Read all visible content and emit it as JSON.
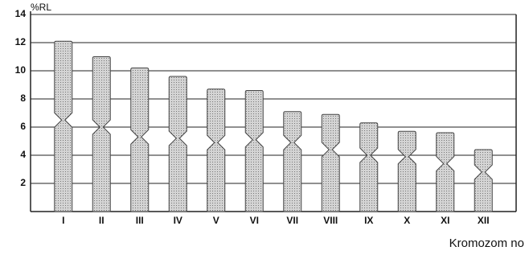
{
  "chart_data": {
    "type": "idiogram",
    "y_label": "%RL",
    "x_label": "Kromozom no",
    "categories": [
      "I",
      "II",
      "III",
      "IV",
      "V",
      "VI",
      "VII",
      "VIII",
      "IX",
      "X",
      "XI",
      "XII"
    ],
    "values": [
      12.1,
      11.0,
      10.2,
      9.6,
      8.7,
      8.6,
      7.1,
      6.9,
      6.3,
      5.7,
      5.6,
      4.4
    ],
    "centromeres": [
      6.5,
      6.0,
      5.3,
      5.2,
      4.9,
      5.1,
      4.9,
      4.4,
      4.0,
      3.9,
      3.4,
      2.8
    ],
    "color": "#b8b8b8",
    "ylim": [
      0,
      14
    ],
    "yticks": [
      2,
      4,
      6,
      8,
      10,
      12,
      14
    ],
    "grid": true
  }
}
